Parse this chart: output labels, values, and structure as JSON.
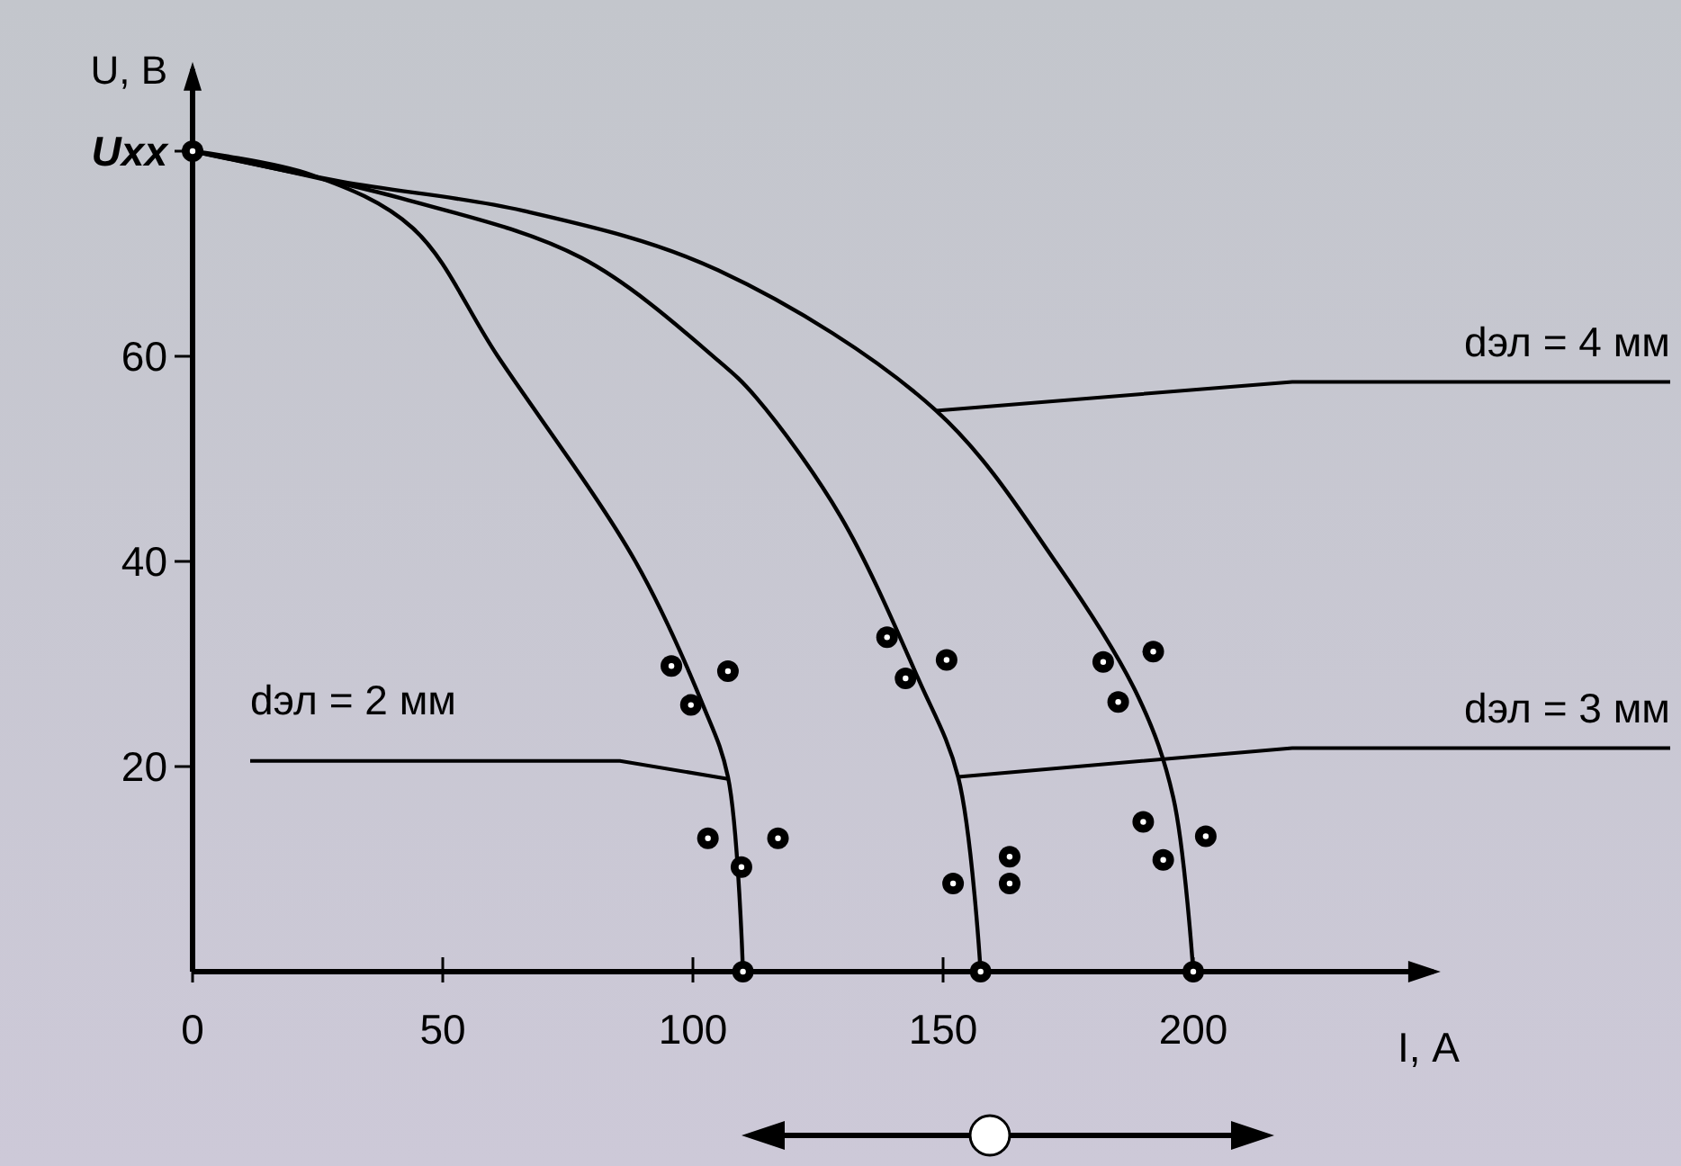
{
  "chart_data": {
    "type": "line",
    "xlabel": "I, А",
    "ylabel": "U, В",
    "xlim": [
      0,
      248
    ],
    "ylim": [
      0,
      88
    ],
    "xticks": [
      0,
      50,
      100,
      150,
      200
    ],
    "yticks": [
      20,
      40,
      60,
      {
        "value": 80,
        "label": "Uxx"
      }
    ],
    "series": [
      {
        "color": "#000000",
        "x": [
          0,
          23.7,
          44,
          61,
          88.5,
          102,
          107,
          110
        ],
        "values": [
          80,
          77.7,
          72.5,
          60,
          40,
          26,
          19,
          0
        ]
      },
      {
        "color": "#000000",
        "x": [
          0,
          41.7,
          77.7,
          105,
          112.6,
          129.5,
          145,
          153,
          157.5
        ],
        "values": [
          80,
          75.4,
          69.6,
          59.6,
          56,
          44.4,
          28.6,
          19,
          0
        ]
      },
      {
        "color": "#000000",
        "x": [
          0,
          30,
          66,
          105,
          148.6,
          172.7,
          189,
          196,
          200
        ],
        "values": [
          80,
          77,
          74.2,
          68.4,
          54.7,
          39.8,
          26.8,
          17,
          0
        ]
      },
      {
        "type": "scatter",
        "color": "#000000",
        "marker": "circle",
        "x": [
          0,
          110,
          157.5,
          200,
          95.7,
          107,
          99.6,
          103,
          109.7,
          117,
          138.8,
          142.5,
          150.7,
          152,
          163.3,
          163.3,
          182,
          192,
          185,
          190,
          194,
          202.5
        ],
        "values": [
          80,
          0,
          0,
          0,
          29.8,
          29.3,
          26,
          13,
          10.2,
          13,
          32.6,
          28.6,
          30.4,
          8.6,
          11.2,
          8.6,
          30.2,
          31.2,
          26.3,
          14.6,
          10.9,
          13.2
        ]
      }
    ],
    "annotations": [
      {
        "text": "dэл = 2 мм",
        "x": 107,
        "y": 18.8
      },
      {
        "text": "dэл = 3 мм",
        "x": 153,
        "y": 19
      },
      {
        "text": "dэл = 4 мм",
        "x": 148.6,
        "y": 54.7
      }
    ],
    "grid": false
  }
}
